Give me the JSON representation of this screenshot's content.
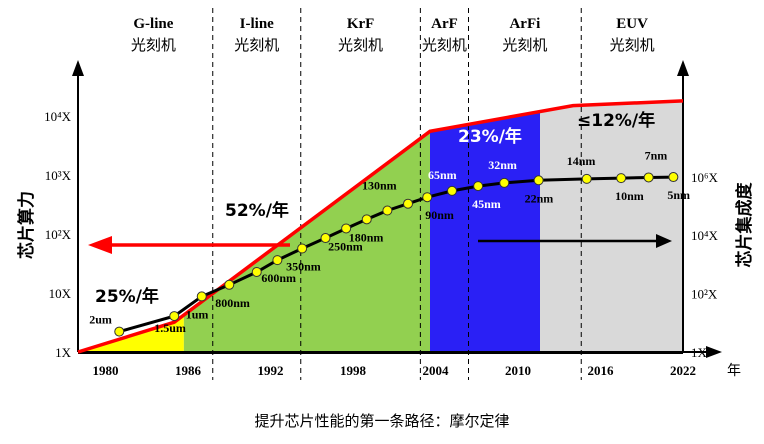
{
  "chart_data": {
    "type": "line",
    "x_ticks": [
      "1980",
      "1986",
      "1992",
      "1998",
      "2004",
      "2010",
      "2016",
      "2022"
    ],
    "x_unit": "年",
    "left_axis": {
      "label": "芯片算力",
      "ticks": [
        "1X",
        "10X",
        "10²X",
        "10³X",
        "10⁴X"
      ],
      "tick_values": [
        1,
        10,
        100,
        1000,
        10000
      ],
      "scale": "log"
    },
    "right_axis": {
      "label": "芯片集成度",
      "ticks": [
        "1X",
        "10²X",
        "10⁴X",
        "10⁶X"
      ],
      "tick_values": [
        1,
        100,
        10000,
        1000000
      ],
      "scale": "log"
    },
    "eras": [
      {
        "name": "G-line",
        "sub": "光刻机",
        "start": 1978,
        "end": 1987.8
      },
      {
        "name": "I-line",
        "sub": "光刻机",
        "start": 1987.8,
        "end": 1994.2
      },
      {
        "name": "KrF",
        "sub": "光刻机",
        "start": 1994.2,
        "end": 2002.9
      },
      {
        "name": "ArF",
        "sub": "光刻机",
        "start": 2002.9,
        "end": 2006.4
      },
      {
        "name": "ArFi",
        "sub": "光刻机",
        "start": 2006.4,
        "end": 2014.6
      },
      {
        "name": "EUV",
        "sub": "光刻机",
        "start": 2014.6,
        "end": 2022
      }
    ],
    "bands": [
      {
        "name": "yellow",
        "start": 1978,
        "end": 1985.7,
        "color": "#ffff00"
      },
      {
        "name": "green",
        "start": 1985.7,
        "end": 2003.6,
        "color": "#92d050"
      },
      {
        "name": "blue",
        "start": 2003.6,
        "end": 2011.6,
        "color": "#2a20f5"
      },
      {
        "name": "gray",
        "start": 2011.6,
        "end": 2022,
        "color": "#d9d9d9"
      }
    ],
    "compute_growth": {
      "name": "芯片算力",
      "color": "#ff0000",
      "points": [
        {
          "x": 1978,
          "y": 1
        },
        {
          "x": 1985,
          "y": 3.2
        },
        {
          "x": 2003.6,
          "y": 5500
        },
        {
          "x": 2014,
          "y": 15000
        },
        {
          "x": 2022,
          "y": 18000
        }
      ]
    },
    "integration_series": {
      "name": "芯片集成度",
      "color": "#000000",
      "marker_color": "#ffff00",
      "points": [
        {
          "x": 1981,
          "y": 5,
          "label": "2um"
        },
        {
          "x": 1985,
          "y": 17,
          "label": "1.5um"
        },
        {
          "x": 1987,
          "y": 80,
          "label": "1um"
        },
        {
          "x": 1989,
          "y": 200,
          "label": "800nm"
        },
        {
          "x": 1991,
          "y": 550,
          "label": ""
        },
        {
          "x": 1992.5,
          "y": 1400,
          "label": "600nm"
        },
        {
          "x": 1994.3,
          "y": 3500,
          "label": "350nm"
        },
        {
          "x": 1996,
          "y": 8000,
          "label": ""
        },
        {
          "x": 1997.5,
          "y": 17000,
          "label": "250nm"
        },
        {
          "x": 1999,
          "y": 35000,
          "label": "180nm"
        },
        {
          "x": 2000.5,
          "y": 70000,
          "label": ""
        },
        {
          "x": 2002,
          "y": 120000,
          "label": "130nm"
        },
        {
          "x": 2003.4,
          "y": 200000,
          "label": "90nm"
        },
        {
          "x": 2005.2,
          "y": 330000,
          "label": "65nm"
        },
        {
          "x": 2007.1,
          "y": 480000,
          "label": "45nm"
        },
        {
          "x": 2009,
          "y": 620000,
          "label": "32nm"
        },
        {
          "x": 2011.5,
          "y": 760000,
          "label": "22nm"
        },
        {
          "x": 2015,
          "y": 850000,
          "label": "14nm"
        },
        {
          "x": 2017.5,
          "y": 900000,
          "label": "10nm"
        },
        {
          "x": 2019.5,
          "y": 950000,
          "label": "7nm"
        },
        {
          "x": 2021.3,
          "y": 980000,
          "label": "5nm"
        }
      ]
    },
    "rate_labels": [
      {
        "text": "25%/年",
        "color": "#000000"
      },
      {
        "text": "52%/年",
        "color": "#000000"
      },
      {
        "text": "23%/年",
        "color": "#ffffff"
      },
      {
        "text": "≤12%/年",
        "color": "#000000"
      }
    ],
    "arrows": [
      {
        "name": "left-axis-arrow",
        "color": "#ff0000"
      },
      {
        "name": "right-axis-arrow",
        "color": "#000000"
      }
    ]
  },
  "caption": "提升芯片性能的第一条路径：摩尔定律"
}
